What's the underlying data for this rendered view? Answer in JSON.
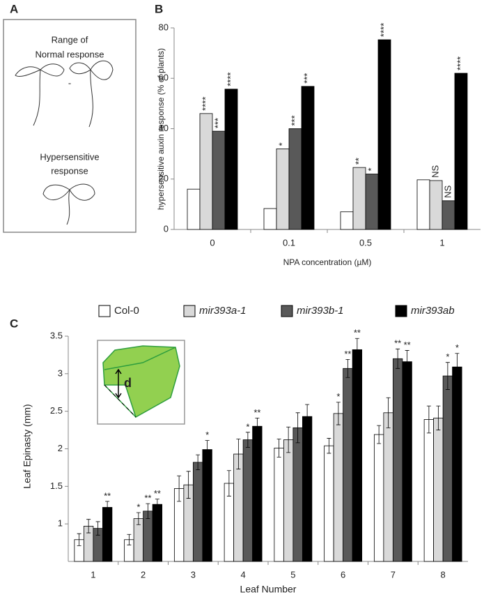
{
  "panel_a": {
    "panel_label": "A",
    "top_lines": [
      "Range of",
      "Normal response"
    ],
    "dash": "-",
    "bottom_lines": [
      "Hypersensitive",
      "response"
    ]
  },
  "chart_data": [
    {
      "type": "bar",
      "panel_label": "B",
      "y_label": "hypersensitive auxin response (% of plants)",
      "x_label": "NPA concentration (µM)",
      "categories": [
        "0",
        "0.1",
        "0.5",
        "1"
      ],
      "ylim": [
        0,
        80
      ],
      "yticks": [
        0,
        20,
        40,
        60,
        80
      ],
      "annotation_orientation": "vertical",
      "series": [
        {
          "color": "#ffffff",
          "values": [
            16,
            8.3,
            7,
            19.7
          ]
        },
        {
          "color": "#d9d9d9",
          "values": [
            46,
            32,
            24.6,
            19.4
          ],
          "annotations": [
            "****",
            "*",
            "**",
            "NS"
          ]
        },
        {
          "color": "#595959",
          "values": [
            39,
            40,
            22,
            11.4
          ],
          "annotations": [
            "***",
            "***",
            "*",
            "NS"
          ]
        },
        {
          "color": "#000000",
          "values": [
            55.7,
            56.8,
            75.3,
            62
          ],
          "annotations": [
            "****",
            "***",
            "****",
            "****"
          ]
        }
      ]
    },
    {
      "type": "bar",
      "panel_label": "C",
      "y_label": "Leaf Epinasty (mm)",
      "x_label": "Leaf Number",
      "inset_label": "d",
      "categories": [
        "1",
        "2",
        "3",
        "4",
        "5",
        "6",
        "7",
        "8"
      ],
      "ylim": [
        0.5,
        3.5
      ],
      "yticks": [
        1,
        1.5,
        2,
        2.5,
        3,
        3.5
      ],
      "annotation_orientation": "horizontal",
      "series": [
        {
          "name": "Col-0",
          "color": "#ffffff",
          "values": [
            0.79,
            0.79,
            1.47,
            1.54,
            2.01,
            2.04,
            2.19,
            2.39
          ],
          "errors": [
            0.08,
            0.07,
            0.17,
            0.17,
            0.12,
            0.1,
            0.12,
            0.18
          ]
        },
        {
          "name": "mir393a-1",
          "color": "#d9d9d9",
          "values": [
            0.97,
            1.07,
            1.52,
            1.93,
            2.12,
            2.47,
            2.48,
            2.41
          ],
          "errors": [
            0.09,
            0.08,
            0.18,
            0.2,
            0.17,
            0.15,
            0.2,
            0.16
          ],
          "annotations": [
            null,
            "*",
            null,
            null,
            null,
            "*",
            null,
            null
          ]
        },
        {
          "name": "mir393b-1",
          "color": "#595959",
          "values": [
            0.94,
            1.17,
            1.82,
            2.12,
            2.28,
            3.07,
            3.2,
            2.97
          ],
          "errors": [
            0.09,
            0.1,
            0.1,
            0.1,
            0.2,
            0.12,
            0.13,
            0.18
          ],
          "annotations": [
            null,
            "**",
            null,
            "*",
            null,
            "**",
            "**",
            "*"
          ]
        },
        {
          "name": "mir393ab",
          "color": "#000000",
          "values": [
            1.22,
            1.26,
            1.99,
            2.3,
            2.43,
            3.32,
            3.16,
            3.09
          ],
          "errors": [
            0.08,
            0.07,
            0.12,
            0.11,
            0.16,
            0.15,
            0.15,
            0.18
          ],
          "annotations": [
            "**",
            "**",
            "*",
            "**",
            null,
            "**",
            "**",
            "*"
          ]
        }
      ]
    }
  ]
}
